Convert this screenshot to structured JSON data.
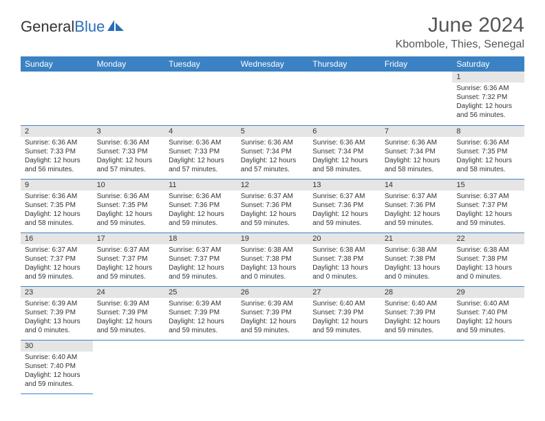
{
  "logo": {
    "text1": "General",
    "text2": "Blue"
  },
  "title": "June 2024",
  "location": "Kbombole, Thies, Senegal",
  "colors": {
    "header_bg": "#3b82c4",
    "header_fg": "#ffffff",
    "daynum_bg": "#e5e5e5",
    "border": "#3b82c4",
    "title_color": "#555",
    "logo_blue": "#2a6db8"
  },
  "days_of_week": [
    "Sunday",
    "Monday",
    "Tuesday",
    "Wednesday",
    "Thursday",
    "Friday",
    "Saturday"
  ],
  "weeks": [
    [
      null,
      null,
      null,
      null,
      null,
      null,
      {
        "n": "1",
        "sr": "6:36 AM",
        "ss": "7:32 PM",
        "dl": "12 hours and 56 minutes."
      }
    ],
    [
      {
        "n": "2",
        "sr": "6:36 AM",
        "ss": "7:33 PM",
        "dl": "12 hours and 56 minutes."
      },
      {
        "n": "3",
        "sr": "6:36 AM",
        "ss": "7:33 PM",
        "dl": "12 hours and 57 minutes."
      },
      {
        "n": "4",
        "sr": "6:36 AM",
        "ss": "7:33 PM",
        "dl": "12 hours and 57 minutes."
      },
      {
        "n": "5",
        "sr": "6:36 AM",
        "ss": "7:34 PM",
        "dl": "12 hours and 57 minutes."
      },
      {
        "n": "6",
        "sr": "6:36 AM",
        "ss": "7:34 PM",
        "dl": "12 hours and 58 minutes."
      },
      {
        "n": "7",
        "sr": "6:36 AM",
        "ss": "7:34 PM",
        "dl": "12 hours and 58 minutes."
      },
      {
        "n": "8",
        "sr": "6:36 AM",
        "ss": "7:35 PM",
        "dl": "12 hours and 58 minutes."
      }
    ],
    [
      {
        "n": "9",
        "sr": "6:36 AM",
        "ss": "7:35 PM",
        "dl": "12 hours and 58 minutes."
      },
      {
        "n": "10",
        "sr": "6:36 AM",
        "ss": "7:35 PM",
        "dl": "12 hours and 59 minutes."
      },
      {
        "n": "11",
        "sr": "6:36 AM",
        "ss": "7:36 PM",
        "dl": "12 hours and 59 minutes."
      },
      {
        "n": "12",
        "sr": "6:37 AM",
        "ss": "7:36 PM",
        "dl": "12 hours and 59 minutes."
      },
      {
        "n": "13",
        "sr": "6:37 AM",
        "ss": "7:36 PM",
        "dl": "12 hours and 59 minutes."
      },
      {
        "n": "14",
        "sr": "6:37 AM",
        "ss": "7:36 PM",
        "dl": "12 hours and 59 minutes."
      },
      {
        "n": "15",
        "sr": "6:37 AM",
        "ss": "7:37 PM",
        "dl": "12 hours and 59 minutes."
      }
    ],
    [
      {
        "n": "16",
        "sr": "6:37 AM",
        "ss": "7:37 PM",
        "dl": "12 hours and 59 minutes."
      },
      {
        "n": "17",
        "sr": "6:37 AM",
        "ss": "7:37 PM",
        "dl": "12 hours and 59 minutes."
      },
      {
        "n": "18",
        "sr": "6:37 AM",
        "ss": "7:37 PM",
        "dl": "12 hours and 59 minutes."
      },
      {
        "n": "19",
        "sr": "6:38 AM",
        "ss": "7:38 PM",
        "dl": "13 hours and 0 minutes."
      },
      {
        "n": "20",
        "sr": "6:38 AM",
        "ss": "7:38 PM",
        "dl": "13 hours and 0 minutes."
      },
      {
        "n": "21",
        "sr": "6:38 AM",
        "ss": "7:38 PM",
        "dl": "13 hours and 0 minutes."
      },
      {
        "n": "22",
        "sr": "6:38 AM",
        "ss": "7:38 PM",
        "dl": "13 hours and 0 minutes."
      }
    ],
    [
      {
        "n": "23",
        "sr": "6:39 AM",
        "ss": "7:39 PM",
        "dl": "13 hours and 0 minutes."
      },
      {
        "n": "24",
        "sr": "6:39 AM",
        "ss": "7:39 PM",
        "dl": "12 hours and 59 minutes."
      },
      {
        "n": "25",
        "sr": "6:39 AM",
        "ss": "7:39 PM",
        "dl": "12 hours and 59 minutes."
      },
      {
        "n": "26",
        "sr": "6:39 AM",
        "ss": "7:39 PM",
        "dl": "12 hours and 59 minutes."
      },
      {
        "n": "27",
        "sr": "6:40 AM",
        "ss": "7:39 PM",
        "dl": "12 hours and 59 minutes."
      },
      {
        "n": "28",
        "sr": "6:40 AM",
        "ss": "7:39 PM",
        "dl": "12 hours and 59 minutes."
      },
      {
        "n": "29",
        "sr": "6:40 AM",
        "ss": "7:40 PM",
        "dl": "12 hours and 59 minutes."
      }
    ],
    [
      {
        "n": "30",
        "sr": "6:40 AM",
        "ss": "7:40 PM",
        "dl": "12 hours and 59 minutes."
      },
      null,
      null,
      null,
      null,
      null,
      null
    ]
  ],
  "labels": {
    "sunrise": "Sunrise:",
    "sunset": "Sunset:",
    "daylight": "Daylight:"
  }
}
